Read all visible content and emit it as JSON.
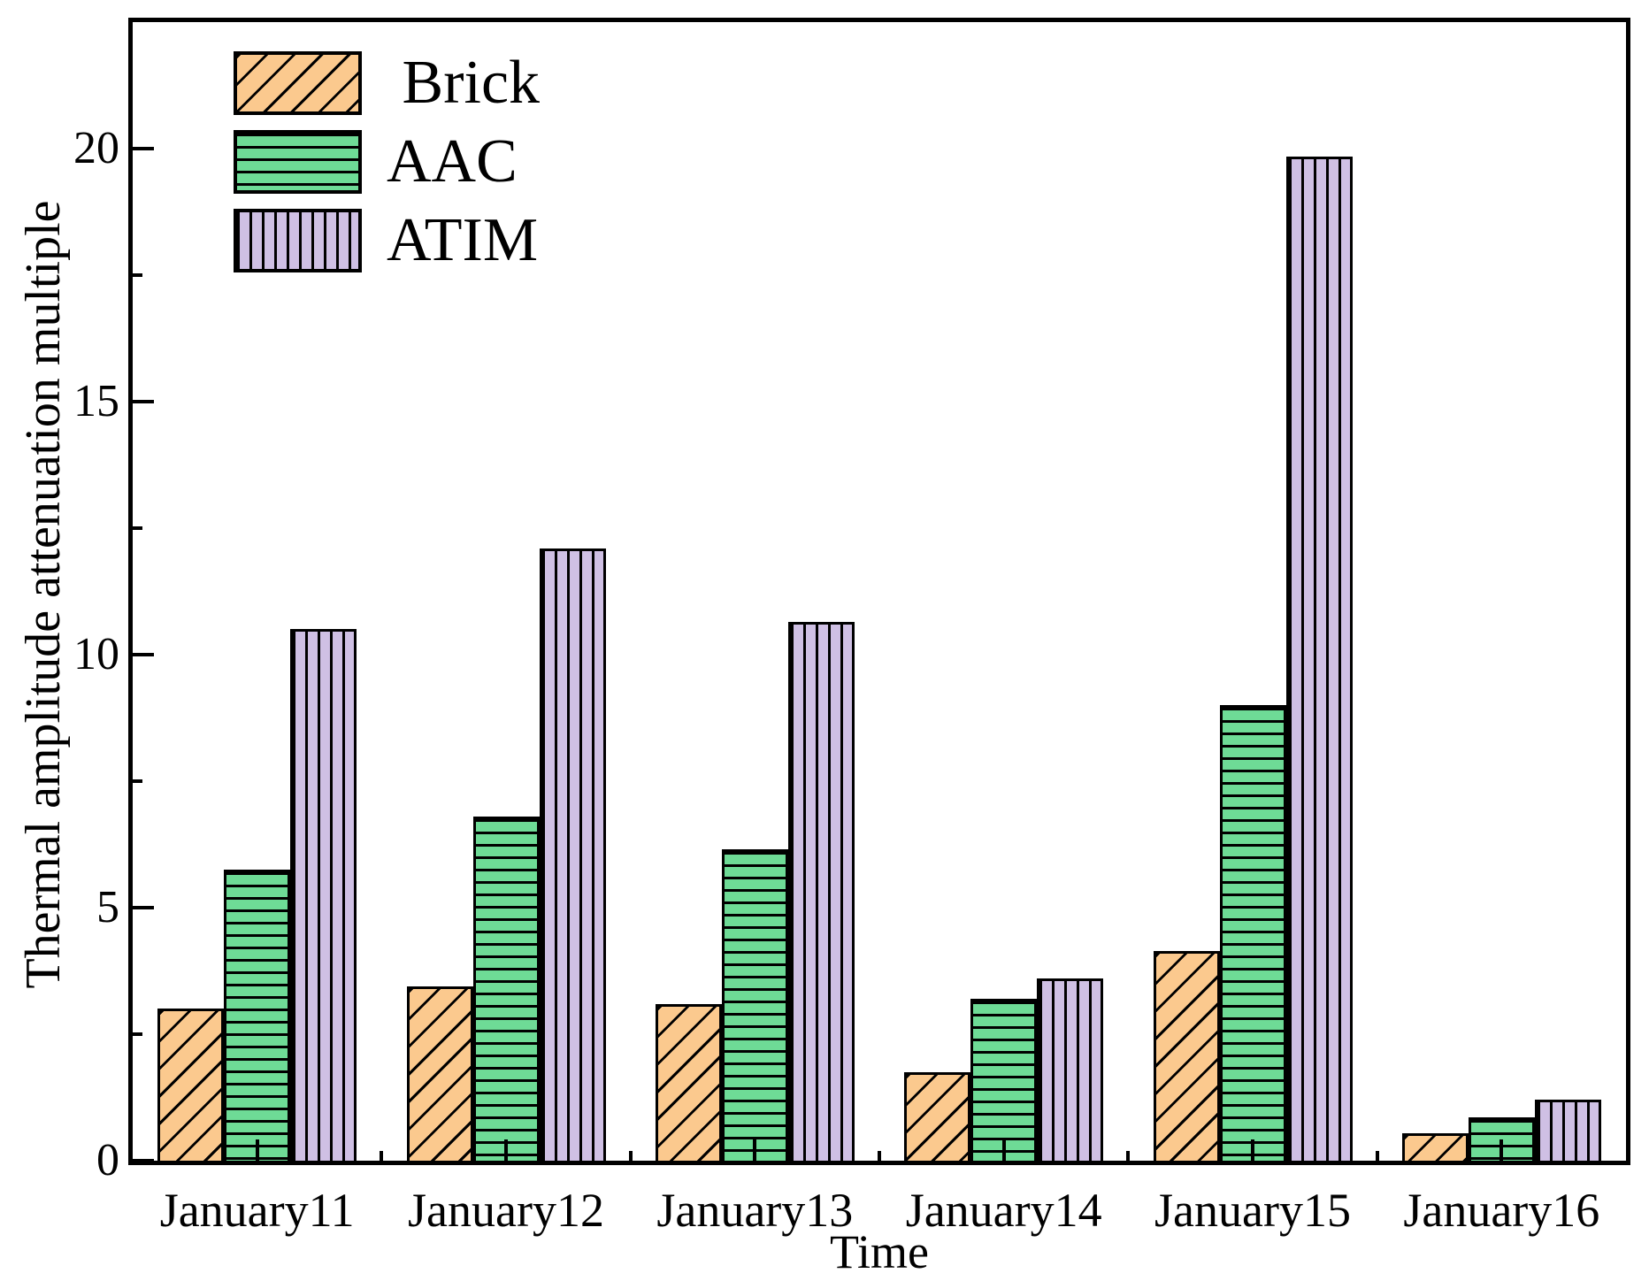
{
  "figure": {
    "background": "#ffffff",
    "border_color": "#000000"
  },
  "chart_data": {
    "type": "bar",
    "title": "",
    "xlabel": "Time",
    "ylabel": "Thermal amplitude attenuation multiple",
    "categories": [
      "January11",
      "January12",
      "January13",
      "January14",
      "January15",
      "January16"
    ],
    "series": [
      {
        "name": "Brick",
        "color": "#FBC98E",
        "hatch": "diagonal",
        "values": [
          3.0,
          3.45,
          3.1,
          1.75,
          4.15,
          0.55
        ]
      },
      {
        "name": "AAC",
        "color": "#6EDB96",
        "hatch": "horizontal",
        "values": [
          5.75,
          6.8,
          6.15,
          3.2,
          9.0,
          0.85
        ]
      },
      {
        "name": "ATIM",
        "color": "#CFC0E4",
        "hatch": "vertical",
        "values": [
          10.5,
          12.1,
          10.65,
          3.6,
          19.85,
          1.2
        ]
      }
    ],
    "ylim": [
      0,
      22.5
    ],
    "yticks_major": [
      0,
      5,
      10,
      15,
      20
    ],
    "yticks_minor": [
      2.5,
      7.5,
      12.5,
      17.5
    ],
    "legend_position": "upper-left",
    "legend_labels": [
      "Brick",
      "AAC",
      "ATIM"
    ],
    "grid": false,
    "hatch_color": "#000000",
    "axis_color": "#000000"
  }
}
